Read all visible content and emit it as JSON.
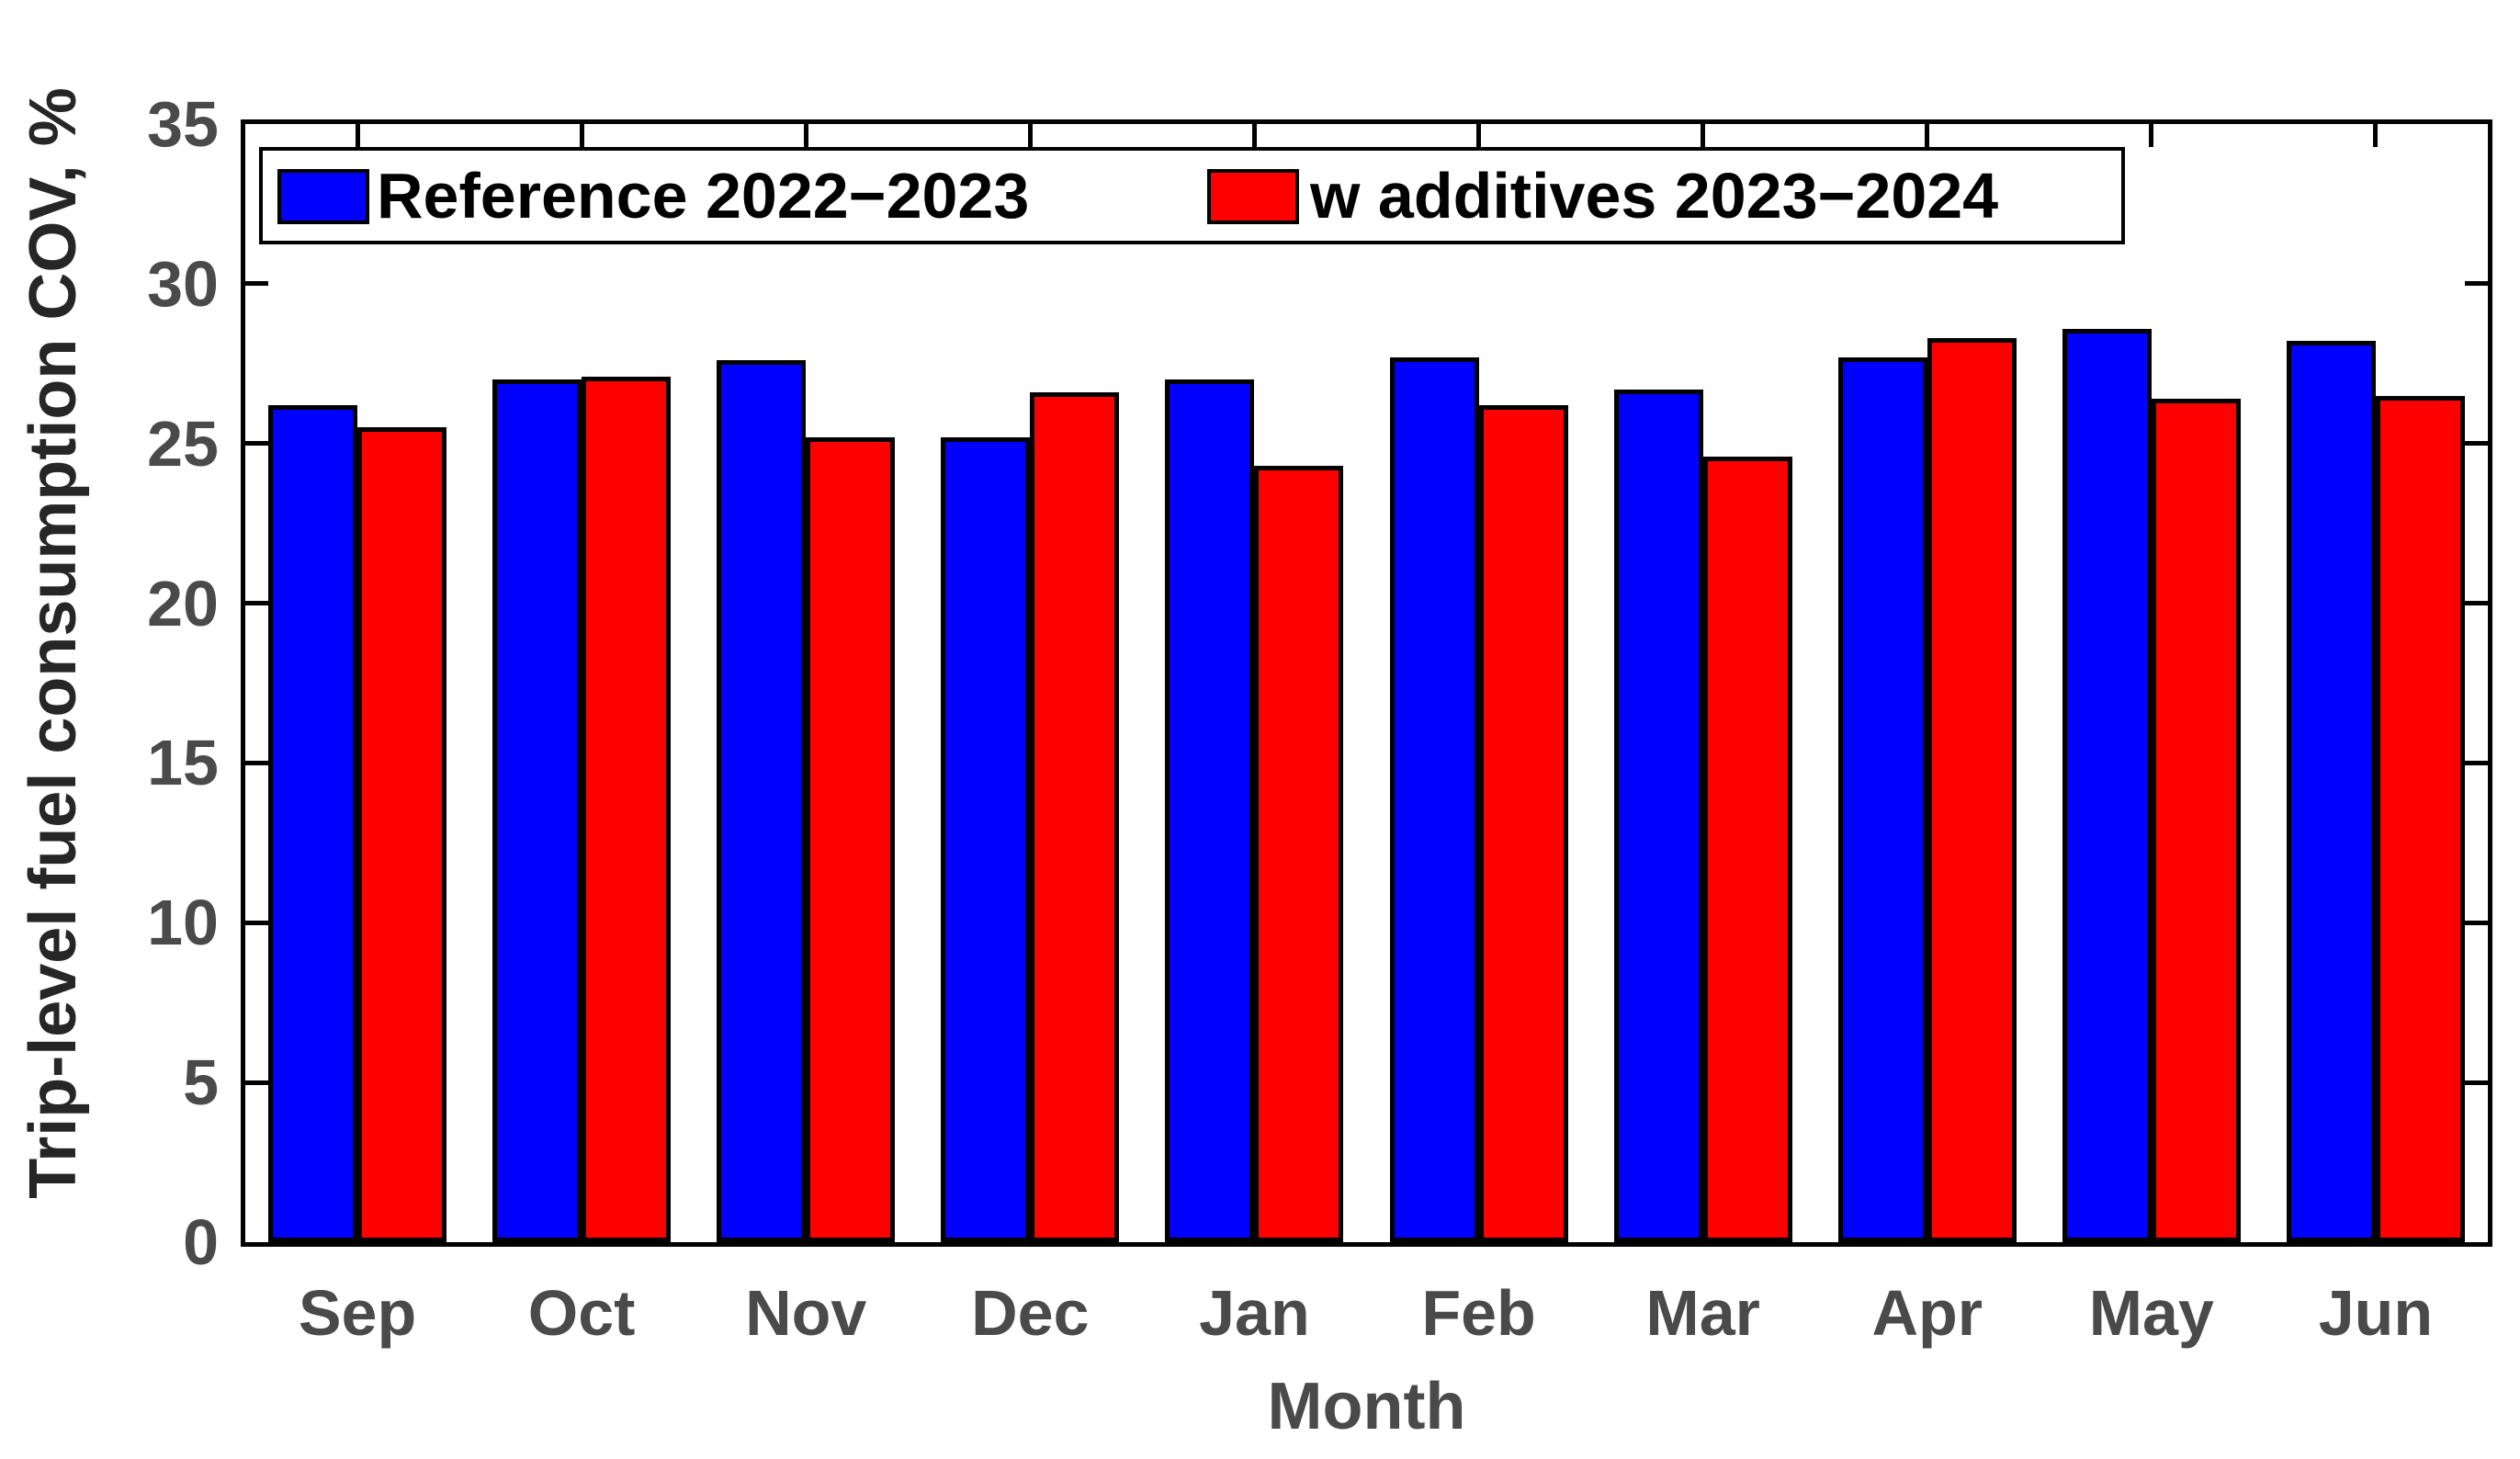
{
  "chart_data": {
    "type": "bar",
    "title": "",
    "xlabel": "Month",
    "ylabel": "Trip-level fuel consumption COV, %",
    "categories": [
      "Sep",
      "Oct",
      "Nov",
      "Dec",
      "Jan",
      "Feb",
      "Mar",
      "Apr",
      "May",
      "Jun"
    ],
    "series": [
      {
        "name": "Reference 2022−2023",
        "color": "#0000ff",
        "values": [
          26.2,
          27.0,
          27.6,
          25.2,
          27.0,
          27.7,
          26.7,
          27.7,
          28.6,
          28.2
        ]
      },
      {
        "name": "w additives 2023−2024",
        "color": "#ff0000",
        "values": [
          25.5,
          27.1,
          25.2,
          26.6,
          24.3,
          26.2,
          24.6,
          28.3,
          26.4,
          26.5
        ]
      }
    ],
    "ylim": [
      0,
      35
    ],
    "yticks": [
      0,
      5,
      10,
      15,
      20,
      25,
      30,
      35
    ],
    "bar_edge_color": "#000000",
    "legend_position": "top-inside",
    "grid": false
  },
  "colors": {
    "background": "#ffffff",
    "axis_line": "#000000",
    "tick_label": "#4a4a4a",
    "axis_label_y": "#262626",
    "legend_text": "#000000"
  }
}
